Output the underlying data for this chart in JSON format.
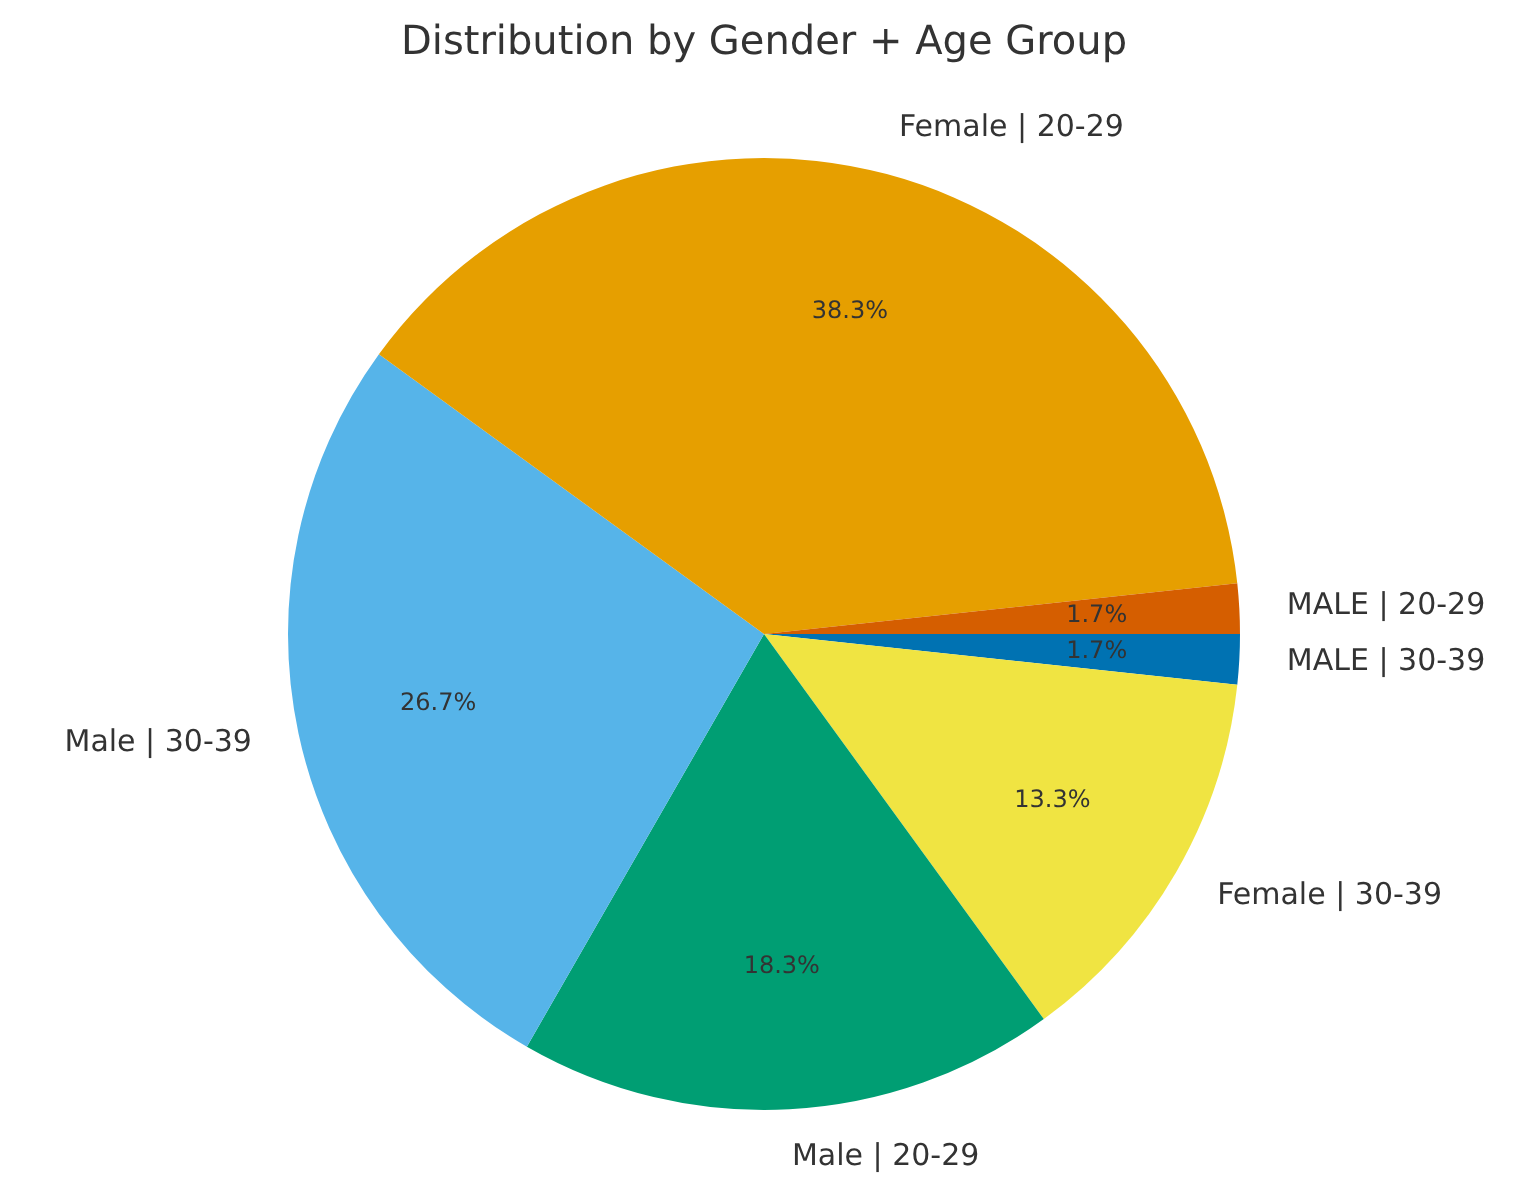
{
  "chart_data": {
    "type": "pie",
    "title": "Distribution by Gender + Age Group",
    "categories": [
      "MALE | 30-39",
      "Female | 30-39",
      "Male | 20-29",
      "Male | 30-39",
      "Female | 20-29",
      "MALE | 20-29"
    ],
    "values": [
      1.7,
      13.3,
      18.3,
      26.7,
      38.3,
      1.7
    ],
    "colors": [
      "#0072b2",
      "#f0e442",
      "#009e73",
      "#56b4e9",
      "#e69f00",
      "#d55e00"
    ],
    "value_labels": [
      "1.7%",
      "13.3%",
      "18.3%",
      "26.7%",
      "38.3%",
      "1.7%"
    ],
    "legend": false
  }
}
